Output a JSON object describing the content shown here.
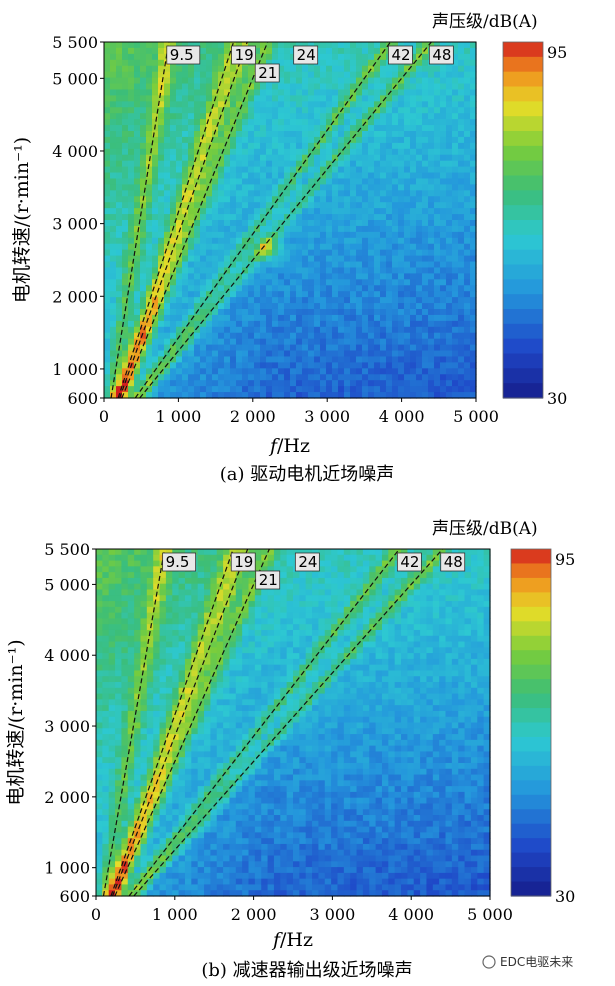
{
  "colors": {
    "low": "#1a2a9e",
    "mid": "#2fc0c8",
    "high": "#d11f1f"
  },
  "watermark": "EDC电驱未来",
  "chart_data": [
    {
      "type": "heatmap",
      "panel": "a",
      "caption": "(a)  驱动电机近场噪声",
      "xlabel_italic": "f",
      "xlabel_rest": "/Hz",
      "ylabel": "电机转速/(r·min⁻¹)",
      "xlim": [
        0,
        5000
      ],
      "ylim": [
        600,
        5500
      ],
      "xticks": [
        {
          "v": 0,
          "label": "0"
        },
        {
          "v": 1000,
          "label": "1 000"
        },
        {
          "v": 2000,
          "label": "2 000"
        },
        {
          "v": 3000,
          "label": "3 000"
        },
        {
          "v": 4000,
          "label": "4 000"
        },
        {
          "v": 5000,
          "label": "5 000"
        }
      ],
      "yticks": [
        {
          "v": 600,
          "label": "600"
        },
        {
          "v": 1000,
          "label": "1 000"
        },
        {
          "v": 2000,
          "label": "2 000"
        },
        {
          "v": 3000,
          "label": "3 000"
        },
        {
          "v": 4000,
          "label": "4 000"
        },
        {
          "v": 5000,
          "label": "5 000"
        },
        {
          "v": 5500,
          "label": "5 500"
        }
      ],
      "orders": [
        {
          "label": "9.5",
          "order": 9.5
        },
        {
          "label": "19",
          "order": 19
        },
        {
          "label": "21",
          "order": 21
        },
        {
          "label": "24",
          "order": 24
        },
        {
          "label": "42",
          "order": 42
        },
        {
          "label": "48",
          "order": 48
        }
      ],
      "colorbar": {
        "title": "声压级/dB(A)",
        "min": 30,
        "max": 95,
        "min_label": "30",
        "max_label": "95"
      },
      "hotspot": {
        "x": 2200,
        "y": 2650
      }
    },
    {
      "type": "heatmap",
      "panel": "b",
      "caption": "(b)  减速器输出级近场噪声",
      "xlabel_italic": "f",
      "xlabel_rest": "/Hz",
      "ylabel": "电机转速/(r·min⁻¹)",
      "xlim": [
        0,
        5000
      ],
      "ylim": [
        600,
        5500
      ],
      "xticks": [
        {
          "v": 0,
          "label": "0"
        },
        {
          "v": 1000,
          "label": "1 000"
        },
        {
          "v": 2000,
          "label": "2 000"
        },
        {
          "v": 3000,
          "label": "3 000"
        },
        {
          "v": 4000,
          "label": "4 000"
        },
        {
          "v": 5000,
          "label": "5 000"
        }
      ],
      "yticks": [
        {
          "v": 600,
          "label": "600"
        },
        {
          "v": 1000,
          "label": "1 000"
        },
        {
          "v": 2000,
          "label": "2 000"
        },
        {
          "v": 3000,
          "label": "3 000"
        },
        {
          "v": 4000,
          "label": "4 000"
        },
        {
          "v": 5000,
          "label": "5 000"
        },
        {
          "v": 5500,
          "label": "5 500"
        }
      ],
      "orders": [
        {
          "label": "9.5",
          "order": 9.5
        },
        {
          "label": "19",
          "order": 19
        },
        {
          "label": "21",
          "order": 21
        },
        {
          "label": "24",
          "order": 24
        },
        {
          "label": "42",
          "order": 42
        },
        {
          "label": "48",
          "order": 48
        }
      ],
      "colorbar": {
        "title": "声压级/dB(A)",
        "min": 30,
        "max": 95,
        "min_label": "30",
        "max_label": "95"
      }
    }
  ]
}
